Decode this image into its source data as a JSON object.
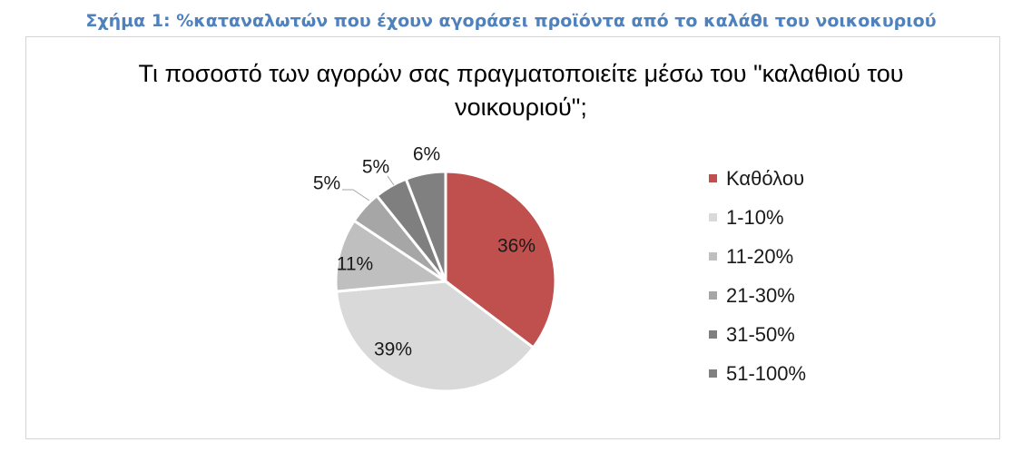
{
  "caption": "Σχήμα 1: %καταναλωτών που έχουν αγοράσει προϊόντα από το καλάθι του νοικοκυριού",
  "chart_data": {
    "type": "pie",
    "title": "Τι ποσοστό των αγορών σας πραγματοποιείτε μέσω του \"καλαθιού του νοικουριού\";",
    "title_lines": [
      "Τι ποσοστό των αγορών σας πραγματοποιείτε μέσω του \"καλαθιού του",
      "νοικουριού\";"
    ],
    "legend_position": "right",
    "slices": [
      {
        "label": "Καθόλου",
        "value": 36,
        "display": "36%",
        "color": "#c0504d"
      },
      {
        "label": "1-10%",
        "value": 39,
        "display": "39%",
        "color": "#d9d9d9"
      },
      {
        "label": "11-20%",
        "value": 11,
        "display": "11%",
        "color": "#bfbfbf"
      },
      {
        "label": "21-30%",
        "value": 5,
        "display": "5%",
        "color": "#a6a6a6"
      },
      {
        "label": "31-50%",
        "value": 5,
        "display": "5%",
        "color": "#7f7f7f"
      },
      {
        "label": "51-100%",
        "value": 6,
        "display": "6%",
        "color": "#808080"
      }
    ]
  }
}
